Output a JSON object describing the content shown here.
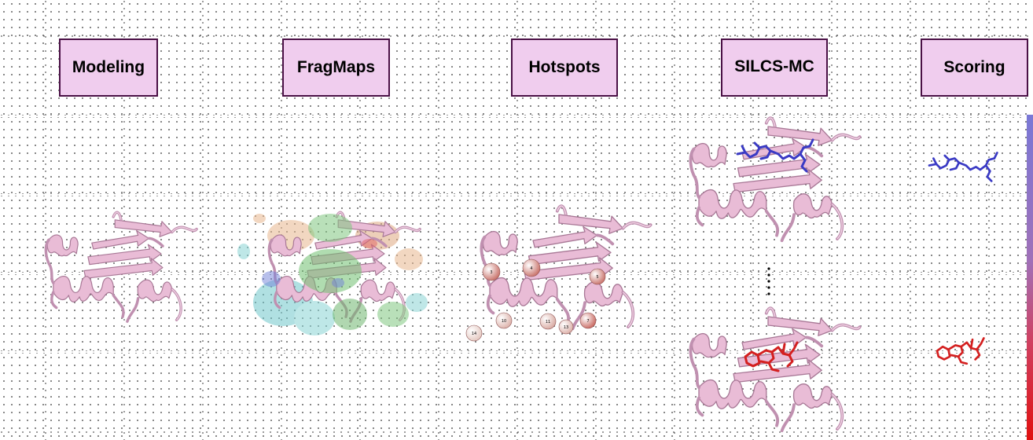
{
  "stages": [
    {
      "id": "modeling",
      "label": "Modeling"
    },
    {
      "id": "fragmaps",
      "label": "FragMaps"
    },
    {
      "id": "hotspots",
      "label": "Hotspots"
    },
    {
      "id": "silcs-mc",
      "label": "SILCS-MC"
    },
    {
      "id": "scoring",
      "label": "Scoring"
    }
  ],
  "hotspot_labels": [
    "3",
    "4",
    "5",
    "10",
    "14",
    "11",
    "13",
    "7"
  ],
  "colors": {
    "protein": "#e9bcd6",
    "protein_edge": "#b88aa6",
    "box_fill": "#f0cdee",
    "box_border": "#4a1045",
    "ligand_top": "#4040c8",
    "ligand_bottom": "#d42020",
    "gradient_top": "#7a78d6",
    "gradient_bottom": "#e01010"
  }
}
